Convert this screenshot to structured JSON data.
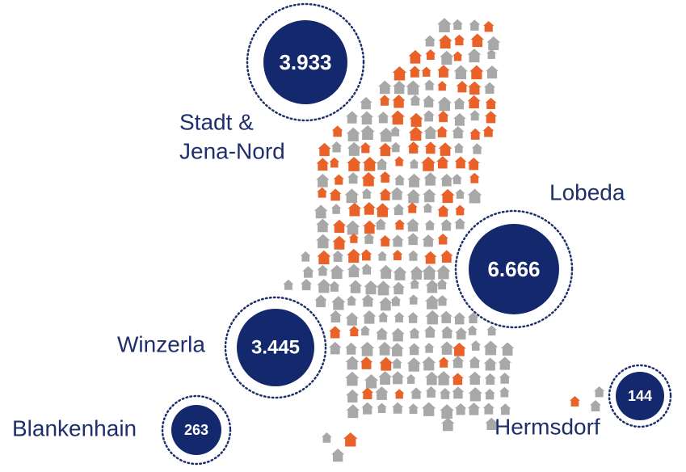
{
  "regions": [
    {
      "name": [
        "Stadt &",
        "Jena-Nord"
      ],
      "value": "3.933"
    },
    {
      "name": [
        "Lobeda"
      ],
      "value": "6.666"
    },
    {
      "name": [
        "Winzerla"
      ],
      "value": "3.445"
    },
    {
      "name": [
        "Blankenhain"
      ],
      "value": "263"
    },
    {
      "name": [
        "Hermsdorf"
      ],
      "value": "144"
    }
  ]
}
